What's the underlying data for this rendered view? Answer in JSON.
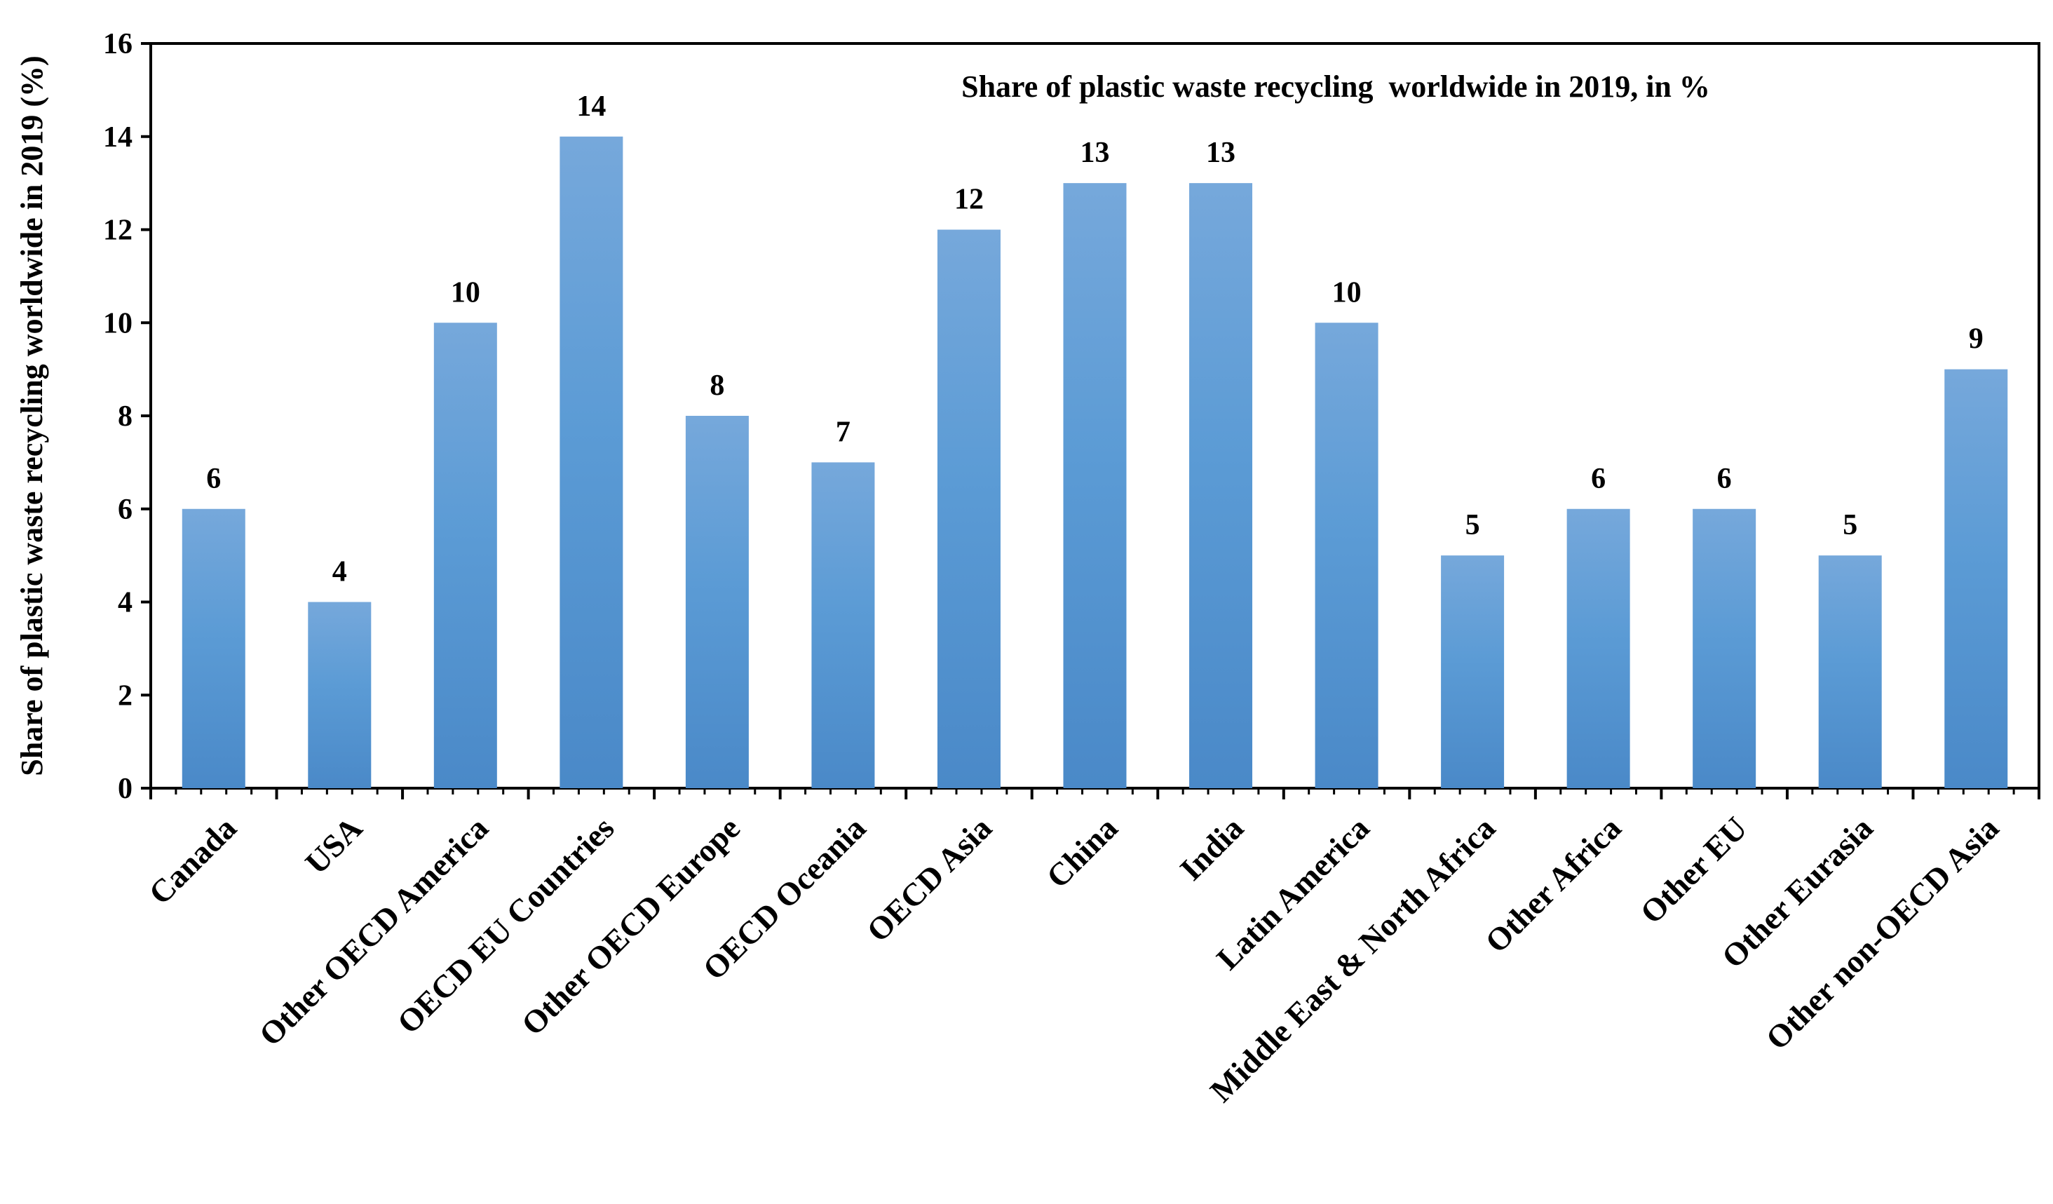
{
  "chart_data": {
    "type": "bar",
    "title": "Share of plastic waste recycling  worldwide in 2019, in %",
    "xlabel": "",
    "ylabel": "Share of plastic waste recycling worldwide in 2019 (%)",
    "ylim": [
      0,
      16
    ],
    "yticks": [
      0,
      2,
      4,
      6,
      8,
      10,
      12,
      14,
      16
    ],
    "grid": false,
    "categories": [
      "Canada",
      "USA",
      "Other OECD America",
      "OECD EU Countries",
      "Other OECD Europe",
      "OECD Oceania",
      "OECD Asia",
      "China",
      "India",
      "Latin America",
      "Middle East & North Africa",
      "Other Africa",
      "Other EU",
      "Other Eurasia",
      "Other non-OECD Asia"
    ],
    "values": [
      6,
      4,
      10,
      14,
      8,
      7,
      12,
      13,
      13,
      10,
      5,
      6,
      6,
      5,
      9
    ],
    "colors": {
      "bar_top": "#76a8db",
      "bar_mid": "#5b9bd5",
      "bar_bottom": "#4a89c8",
      "axis": "#000000"
    }
  }
}
